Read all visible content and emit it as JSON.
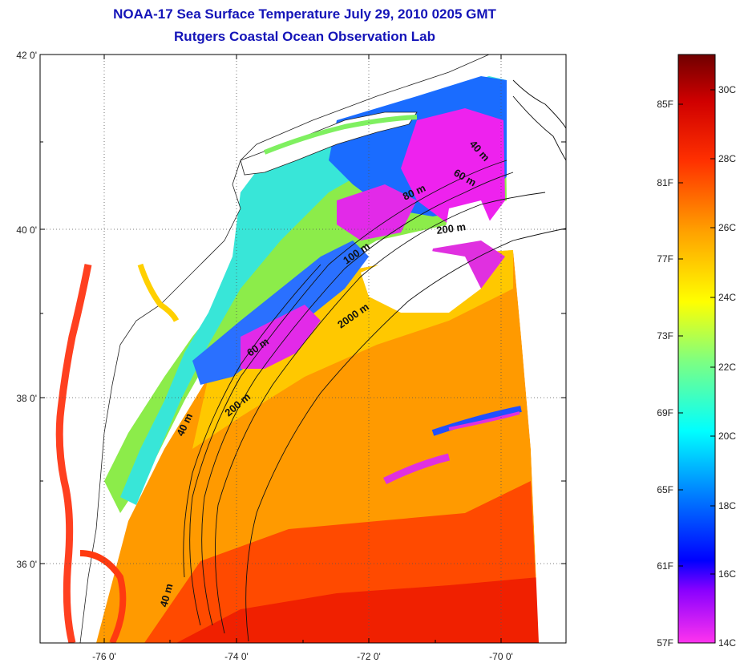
{
  "title": {
    "line1": "NOAA-17 Sea Surface Temperature July 29, 2010 0205 GMT",
    "line2": "Rutgers Coastal Ocean Observation Lab"
  },
  "axes": {
    "latitude_labels": [
      "42 0'",
      "40 0'",
      "38 0'",
      "36 0'"
    ],
    "longitude_labels": [
      "-76 0'",
      "-74 0'",
      "-72 0'",
      "-70 0'"
    ]
  },
  "colorbar": {
    "fahrenheit_labels": [
      "85F",
      "81F",
      "77F",
      "73F",
      "69F",
      "65F",
      "61F",
      "57F"
    ],
    "celsius_labels": [
      "30C",
      "28C",
      "26C",
      "24C",
      "22C",
      "20C",
      "18C",
      "16C",
      "14C"
    ],
    "colors": [
      "#e000e0",
      "#7000ff",
      "#0000ff",
      "#0090ff",
      "#00ffff",
      "#80ff80",
      "#ffff00",
      "#ffa000",
      "#ff2000",
      "#d00000",
      "#800000"
    ]
  },
  "contours": {
    "labels": [
      "40 m",
      "60 m",
      "80 m",
      "200 m",
      "100 m",
      "2000 m",
      "60 m",
      "200 m",
      "40 m",
      "40 m"
    ]
  },
  "colors": {
    "title": "#1414b8",
    "land": "#ffffff",
    "no_data": "#ffffff",
    "grid": "#666666"
  }
}
